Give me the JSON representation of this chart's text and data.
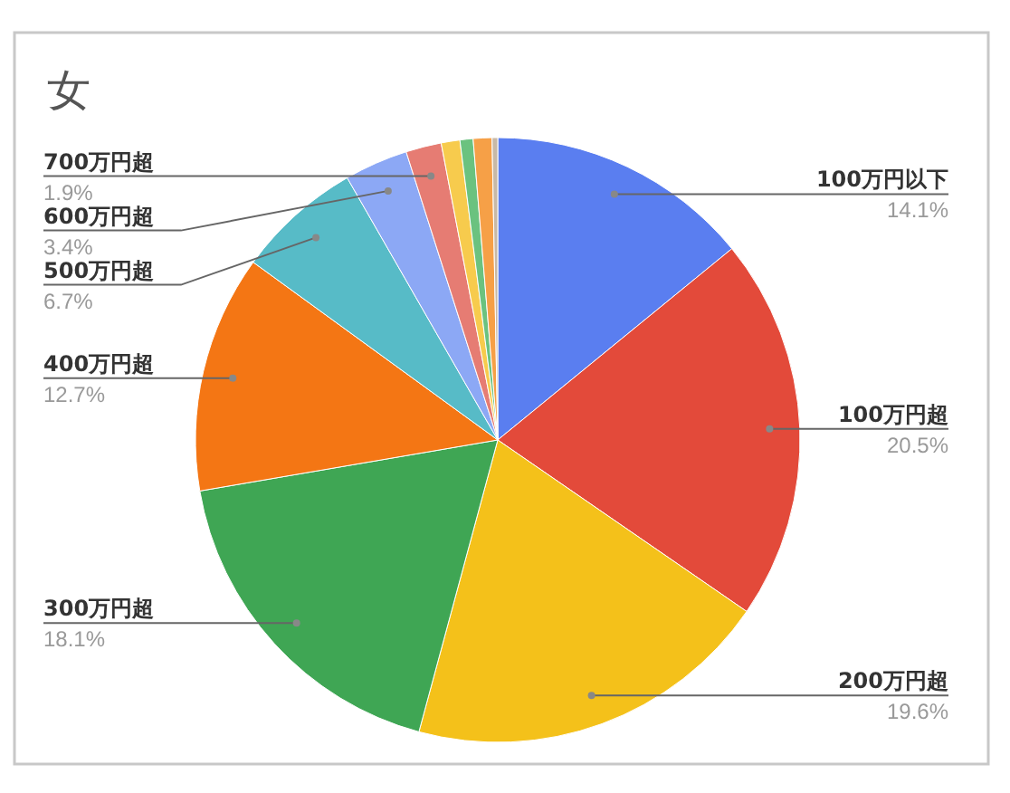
{
  "chart_data": {
    "type": "pie",
    "title": "女",
    "categories": [
      "100万円以下",
      "100万円超",
      "200万円超",
      "300万円超",
      "400万円超",
      "500万円超",
      "600万円超",
      "700万円超",
      null,
      null,
      null,
      null
    ],
    "values": [
      14.1,
      20.5,
      19.6,
      18.1,
      12.7,
      6.7,
      3.4,
      1.9,
      1.0,
      0.7,
      1.0,
      0.3
    ],
    "value_labels": [
      "14.1%",
      "20.5%",
      "19.6%",
      "18.1%",
      "12.7%",
      "6.7%",
      "3.4%",
      "1.9%",
      null,
      null,
      null,
      null
    ],
    "colors": [
      "#5a7ef0",
      "#e34a3a",
      "#f4c11a",
      "#3fa654",
      "#f47614",
      "#57bbc7",
      "#8ca8f5",
      "#e67c73",
      "#f7cb4d",
      "#6bc27f",
      "#f6a047",
      "#c8b9a6"
    ]
  }
}
